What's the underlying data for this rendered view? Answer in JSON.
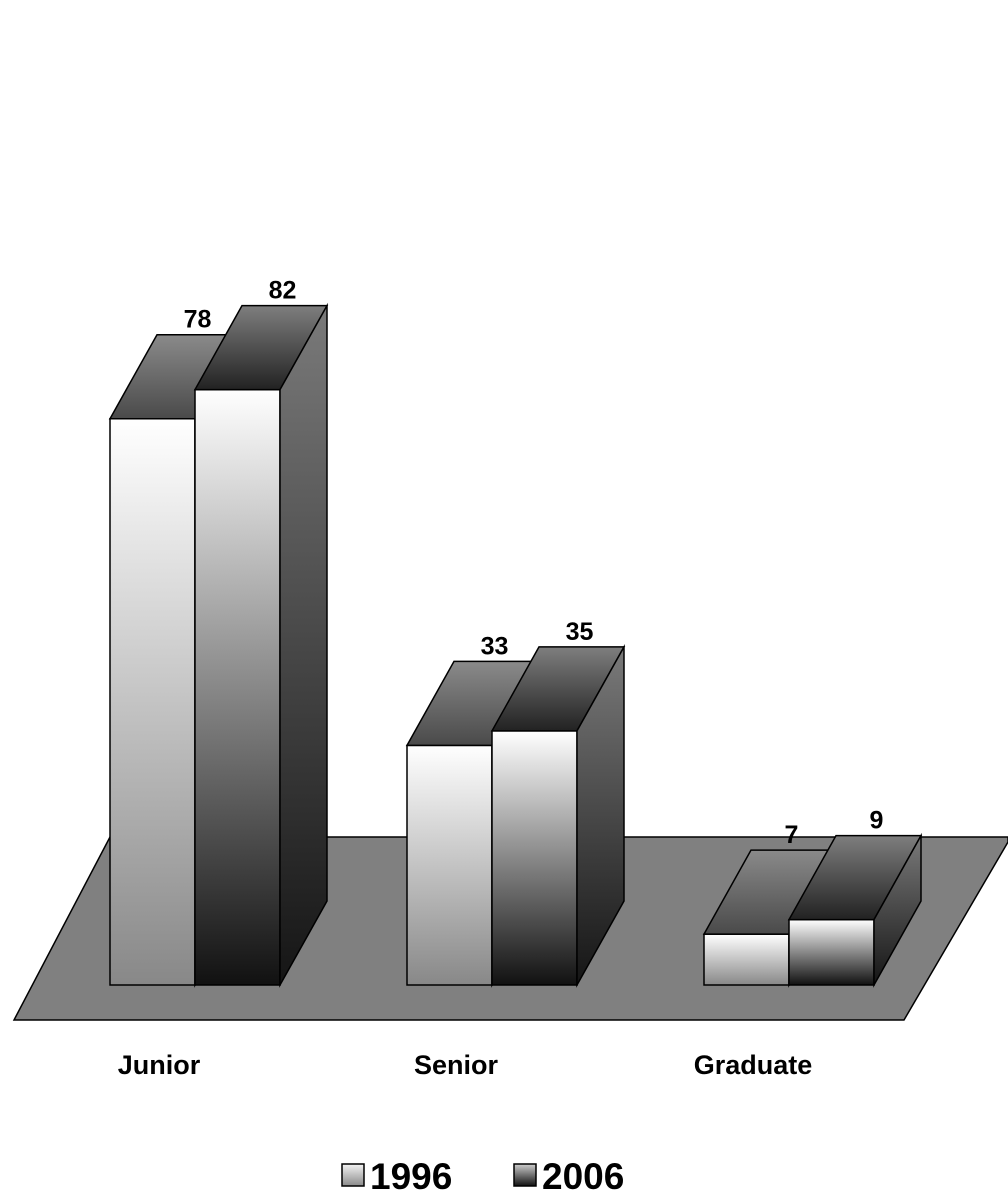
{
  "chart_data": {
    "type": "bar",
    "subtype": "3d-clustered-column",
    "title": "",
    "xlabel": "",
    "ylabel": "",
    "categories": [
      "Junior",
      "Senior",
      "Graduate"
    ],
    "series": [
      {
        "name": "1996",
        "values": [
          78,
          33,
          7
        ]
      },
      {
        "name": "2006",
        "values": [
          82,
          35,
          9
        ]
      }
    ],
    "data_labels": true,
    "grid": false,
    "legend": {
      "position": "bottom"
    },
    "colors": {
      "floor": "#808080",
      "series_1996_top": "#ffffff",
      "series_1996_bottom": "#888888",
      "series_2006_top": "#ffffff",
      "series_2006_bottom": "#111111",
      "side": "#7a7a7a",
      "outline": "#000000"
    }
  }
}
